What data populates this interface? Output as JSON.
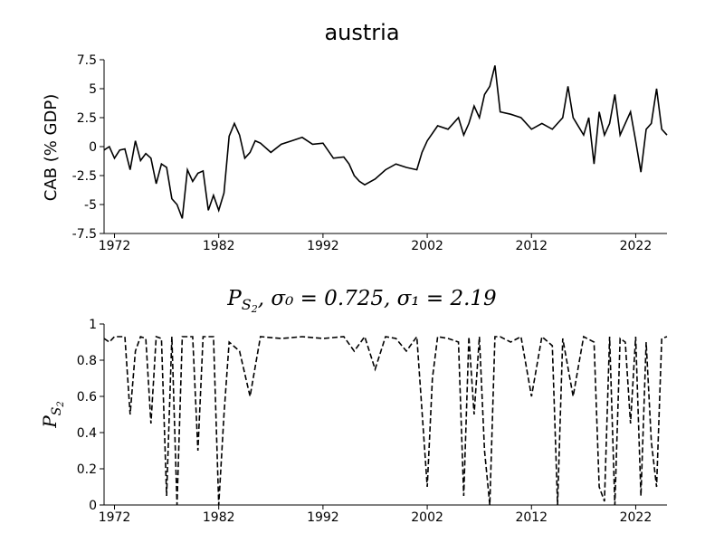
{
  "chart_data": [
    {
      "type": "line",
      "title": "austria",
      "ylabel": "CAB (% GDP)",
      "xlabel": "",
      "xlim": [
        1971,
        2025
      ],
      "ylim": [
        -7.5,
        7.5
      ],
      "x_ticks": [
        "1972",
        "1982",
        "1992",
        "2002",
        "2012",
        "2022"
      ],
      "y_ticks": [
        "7.5",
        "5",
        "2.5",
        "0",
        "-2.5",
        "-5",
        "-7.5"
      ],
      "grid": false,
      "line_style": "solid",
      "series": [
        {
          "x": [
            1971.0,
            1971.5,
            1972.0,
            1972.5,
            1973.0,
            1973.5,
            1974.0,
            1974.5,
            1975.0,
            1975.5,
            1976.0,
            1976.5,
            1977.0,
            1977.5,
            1978.0,
            1978.5,
            1979.0,
            1979.5,
            1980.0,
            1980.5,
            1981.0,
            1981.5,
            1982.0,
            1982.5,
            1983.0,
            1983.5,
            1984.0,
            1984.5,
            1985.0,
            1985.5,
            1986.0,
            1987.0,
            1988.0,
            1989.0,
            1990.0,
            1991.0,
            1992.0,
            1993.0,
            1994.0,
            1994.5,
            1995.0,
            1995.5,
            1996.0,
            1997.0,
            1998.0,
            1999.0,
            2000.0,
            2001.0,
            2001.5,
            2002.0,
            2003.0,
            2004.0,
            2005.0,
            2005.5,
            2006.0,
            2006.5,
            2007.0,
            2007.5,
            2008.0,
            2008.5,
            2009.0,
            2010.0,
            2011.0,
            2012.0,
            2013.0,
            2014.0,
            2015.0,
            2015.5,
            2016.0,
            2017.0,
            2017.5,
            2018.0,
            2018.5,
            2019.0,
            2019.5,
            2020.0,
            2020.5,
            2021.0,
            2021.5,
            2022.0,
            2022.5,
            2023.0,
            2023.5,
            2024.0,
            2024.5,
            2025.0
          ],
          "values": [
            -0.3,
            0.0,
            -1.0,
            -0.3,
            -0.2,
            -2.0,
            0.5,
            -1.2,
            -0.6,
            -1.0,
            -3.2,
            -1.5,
            -1.8,
            -4.5,
            -5.0,
            -6.2,
            -2.0,
            -3.0,
            -2.3,
            -2.1,
            -5.5,
            -4.2,
            -5.5,
            -4.0,
            0.9,
            2.0,
            1.0,
            -1.0,
            -0.5,
            0.5,
            0.3,
            -0.5,
            0.2,
            0.5,
            0.8,
            0.2,
            0.3,
            -1.0,
            -0.9,
            -1.5,
            -2.5,
            -3.0,
            -3.3,
            -2.8,
            -2.0,
            -1.5,
            -1.8,
            -2.0,
            -0.5,
            0.5,
            1.8,
            1.5,
            2.5,
            1.0,
            2.0,
            3.5,
            2.5,
            4.5,
            5.2,
            7.0,
            3.0,
            2.8,
            2.5,
            1.5,
            2.0,
            1.5,
            2.5,
            5.2,
            2.5,
            1.0,
            2.5,
            -1.5,
            3.0,
            1.0,
            2.0,
            4.5,
            1.0,
            2.0,
            3.0,
            0.5,
            -2.2,
            1.5,
            2.0,
            5.0,
            1.5,
            1.0
          ]
        }
      ]
    },
    {
      "type": "line",
      "title": "P_{S_2}, σ_0 = 0.725, σ_1 = 2.19",
      "title_parts": {
        "p": "P",
        "s": "S",
        "two": "2",
        "rest": ", σ₀ = 0.725, σ₁ = 2.19"
      },
      "ylabel": "P_{S_2}",
      "ylabel_parts": {
        "p": "P",
        "s": "S",
        "two": "2"
      },
      "xlabel": "",
      "xlim": [
        1971,
        2025
      ],
      "ylim": [
        0,
        1
      ],
      "x_ticks": [
        "1972",
        "1982",
        "1992",
        "2002",
        "2012",
        "2022"
      ],
      "y_ticks": [
        "1",
        "0.8",
        "0.6",
        "0.4",
        "0.2",
        "0"
      ],
      "grid": false,
      "line_style": "dashed",
      "series": [
        {
          "x": [
            1971.0,
            1971.5,
            1972.0,
            1972.5,
            1973.0,
            1973.5,
            1974.0,
            1974.5,
            1975.0,
            1975.5,
            1976.0,
            1976.5,
            1977.0,
            1977.5,
            1978.0,
            1978.5,
            1979.0,
            1979.5,
            1980.0,
            1980.5,
            1981.0,
            1981.5,
            1982.0,
            1982.5,
            1983.0,
            1984.0,
            1985.0,
            1986.0,
            1988.0,
            1990.0,
            1992.0,
            1994.0,
            1995.0,
            1996.0,
            1997.0,
            1998.0,
            1999.0,
            2000.0,
            2001.0,
            2002.0,
            2002.5,
            2003.0,
            2004.0,
            2005.0,
            2005.5,
            2006.0,
            2006.5,
            2007.0,
            2007.5,
            2008.0,
            2008.5,
            2009.0,
            2010.0,
            2011.0,
            2012.0,
            2013.0,
            2014.0,
            2014.5,
            2015.0,
            2016.0,
            2017.0,
            2018.0,
            2018.5,
            2019.0,
            2019.5,
            2020.0,
            2020.5,
            2021.0,
            2021.5,
            2022.0,
            2022.5,
            2023.0,
            2023.5,
            2024.0,
            2024.5,
            2025.0
          ],
          "values": [
            0.92,
            0.9,
            0.93,
            0.93,
            0.93,
            0.5,
            0.85,
            0.93,
            0.92,
            0.45,
            0.93,
            0.92,
            0.05,
            0.93,
            0.0,
            0.93,
            0.93,
            0.93,
            0.3,
            0.93,
            0.93,
            0.93,
            0.0,
            0.5,
            0.9,
            0.85,
            0.6,
            0.93,
            0.92,
            0.93,
            0.92,
            0.93,
            0.85,
            0.93,
            0.75,
            0.93,
            0.92,
            0.85,
            0.93,
            0.1,
            0.7,
            0.93,
            0.92,
            0.9,
            0.05,
            0.93,
            0.5,
            0.93,
            0.3,
            0.0,
            0.93,
            0.93,
            0.9,
            0.93,
            0.6,
            0.93,
            0.88,
            0.0,
            0.92,
            0.6,
            0.93,
            0.9,
            0.1,
            0.02,
            0.93,
            0.0,
            0.92,
            0.9,
            0.45,
            0.93,
            0.05,
            0.9,
            0.35,
            0.1,
            0.92,
            0.93
          ]
        }
      ]
    }
  ]
}
